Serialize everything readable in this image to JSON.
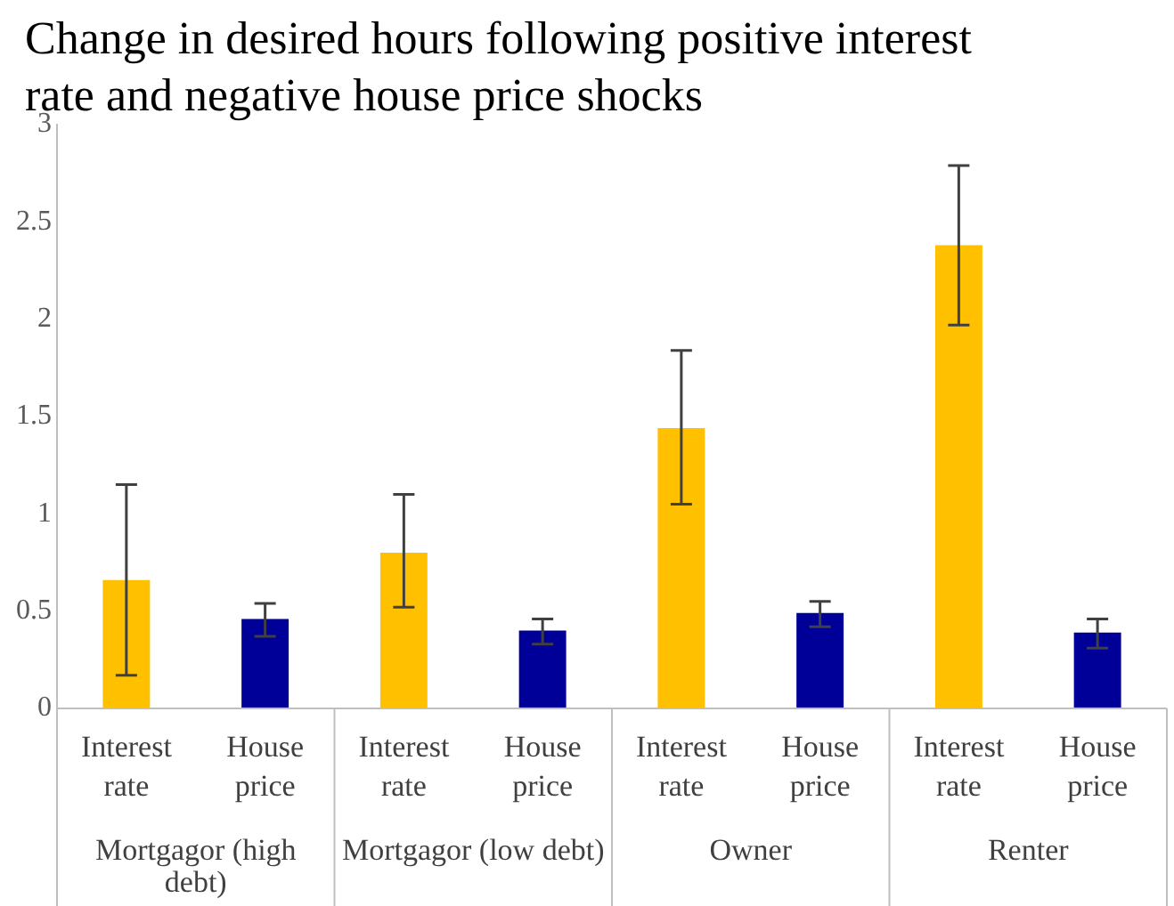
{
  "chart_data": {
    "type": "bar",
    "title": "Change in desired hours following positive interest rate and negative house price shocks",
    "categories": [
      "Mortgagor (high debt)",
      "Mortgagor (low debt)",
      "Owner",
      "Renter"
    ],
    "series": [
      {
        "name": "Interest rate",
        "color": "#ffc000",
        "values": [
          0.66,
          0.8,
          1.44,
          2.38
        ],
        "errors": [
          [
            0.17,
            1.15
          ],
          [
            0.52,
            1.1
          ],
          [
            1.05,
            1.84
          ],
          [
            1.97,
            2.79
          ]
        ]
      },
      {
        "name": "House price",
        "color": "#000099",
        "values": [
          0.46,
          0.4,
          0.49,
          0.39
        ],
        "errors": [
          [
            0.37,
            0.54
          ],
          [
            0.33,
            0.46
          ],
          [
            0.42,
            0.55
          ],
          [
            0.31,
            0.46
          ]
        ]
      }
    ],
    "ylim": [
      0,
      3
    ],
    "yticks": [
      0,
      0.5,
      1,
      1.5,
      2,
      2.5,
      3
    ],
    "grid": false,
    "legend": false
  }
}
